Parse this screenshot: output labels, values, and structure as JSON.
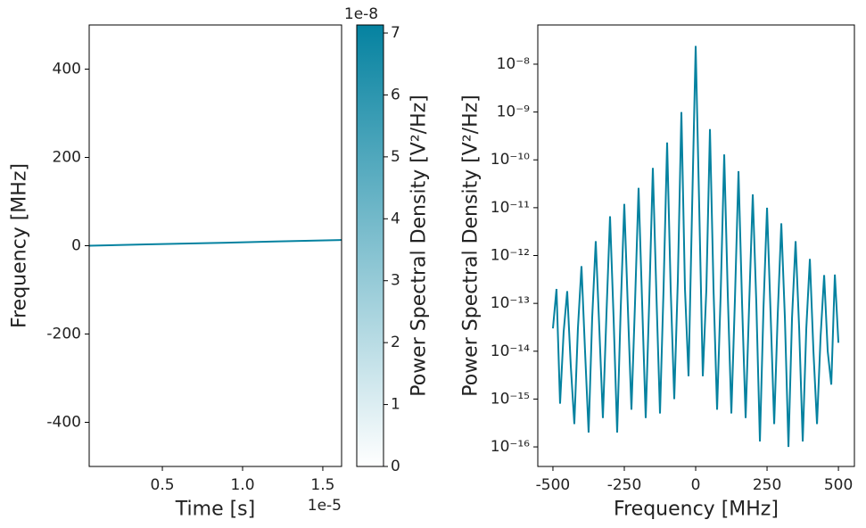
{
  "chart_data": [
    {
      "type": "spectrogram",
      "xlabel": "Time [s]",
      "ylabel": "Frequency [MHz]",
      "x_offset_label": "1e-5",
      "xlim": [
        4.4e-07,
        1.617e-05
      ],
      "xticks": [
        {
          "value": 5e-06,
          "label": "0.5"
        },
        {
          "value": 1e-05,
          "label": "1.0"
        },
        {
          "value": 1.5e-05,
          "label": "1.5"
        }
      ],
      "ylim": [
        -500,
        500
      ],
      "yticks": [
        -400,
        -200,
        0,
        200,
        400
      ],
      "x": [
        4.4e-07,
        4e-06,
        8e-06,
        1.2e-05,
        1.617e-05
      ],
      "values": [
        0,
        3,
        6,
        9.5,
        13
      ],
      "color": "#0582a0",
      "colorbar": {
        "label": "Power Spectral Density [V²/Hz]",
        "offset_label": "1e-8",
        "lim": [
          0,
          7.13e-08
        ],
        "ticks": [
          {
            "value": 0,
            "label": "0"
          },
          {
            "value": 1e-08,
            "label": "1"
          },
          {
            "value": 2e-08,
            "label": "2"
          },
          {
            "value": 3e-08,
            "label": "3"
          },
          {
            "value": 4e-08,
            "label": "4"
          },
          {
            "value": 5e-08,
            "label": "5"
          },
          {
            "value": 6e-08,
            "label": "6"
          },
          {
            "value": 7e-08,
            "label": "7"
          }
        ],
        "colors": [
          "#ffffff",
          "#0582a0"
        ]
      }
    },
    {
      "type": "line",
      "xlabel": "Frequency [MHz]",
      "ylabel": "Power Spectral Density [V²/Hz]",
      "log_y": true,
      "xlim": [
        -553,
        556
      ],
      "xticks": [
        -500,
        -250,
        0,
        250,
        500
      ],
      "ylim": [
        3.9e-17,
        6.6e-08
      ],
      "yticks": [
        {
          "value": 1e-16,
          "label": "10⁻¹⁶"
        },
        {
          "value": 1e-15,
          "label": "10⁻¹⁵"
        },
        {
          "value": 1e-14,
          "label": "10⁻¹⁴"
        },
        {
          "value": 1e-13,
          "label": "10⁻¹³"
        },
        {
          "value": 1e-12,
          "label": "10⁻¹²"
        },
        {
          "value": 1e-11,
          "label": "10⁻¹¹"
        },
        {
          "value": 1e-10,
          "label": "10⁻¹⁰"
        },
        {
          "value": 1e-09,
          "label": "10⁻⁹"
        },
        {
          "value": 1e-08,
          "label": "10⁻⁸"
        }
      ],
      "x": [
        -500,
        -487.5,
        -475,
        -462.5,
        -450,
        -437.5,
        -425,
        -412.5,
        -400,
        -387.5,
        -375,
        -362.5,
        -350,
        -337.5,
        -325,
        -312.5,
        -300,
        -287.5,
        -275,
        -262.5,
        -250,
        -237.5,
        -225,
        -212.5,
        -200,
        -187.5,
        -175,
        -162.5,
        -150,
        -137.5,
        -125,
        -112.5,
        -100,
        -87.5,
        -75,
        -62.5,
        -50,
        -37.5,
        -25,
        -12.5,
        0,
        12.5,
        25,
        37.5,
        50,
        62.5,
        75,
        87.5,
        100,
        112.5,
        125,
        137.5,
        150,
        162.5,
        175,
        187.5,
        200,
        212.5,
        225,
        237.5,
        250,
        262.5,
        275,
        287.5,
        300,
        312.5,
        325,
        337.5,
        350,
        362.5,
        375,
        387.5,
        400,
        412.5,
        425,
        437.5,
        450,
        462.5,
        475,
        487.5,
        500
      ],
      "series": [
        {
          "color": "#0582a0",
          "values": [
            3e-14,
            2e-13,
            8e-16,
            2.5e-14,
            1.8e-13,
            5e-15,
            3e-16,
            3e-14,
            6e-13,
            1e-14,
            2e-16,
            5e-14,
            2e-12,
            3e-14,
            4e-16,
            6e-14,
            6.6e-12,
            5e-14,
            2e-16,
            8e-14,
            1.2e-11,
            8e-14,
            6e-16,
            1e-13,
            2.6e-11,
            1e-13,
            4e-16,
            1.2e-13,
            6.8e-11,
            1.5e-13,
            5e-16,
            2e-13,
            2.3e-10,
            2e-13,
            1e-15,
            3e-13,
            1e-09,
            2e-13,
            3e-15,
            1e-11,
            2.4e-08,
            1e-11,
            3e-15,
            2e-13,
            4.4e-10,
            2e-13,
            6e-16,
            1.5e-13,
            1.3e-10,
            1.5e-13,
            5e-16,
            1.2e-13,
            5.8e-11,
            1e-13,
            4e-16,
            1e-13,
            1.9e-11,
            1e-13,
            1.3e-16,
            8e-14,
            1e-11,
            6e-14,
            3e-16,
            6e-14,
            4.7e-12,
            5e-14,
            1e-16,
            5e-14,
            2e-12,
            3e-14,
            1.3e-16,
            3e-14,
            8.5e-13,
            1e-14,
            3e-16,
            2e-14,
            3.9e-13,
            1e-14,
            2e-15,
            4e-13,
            1.5e-14
          ]
        }
      ]
    }
  ]
}
